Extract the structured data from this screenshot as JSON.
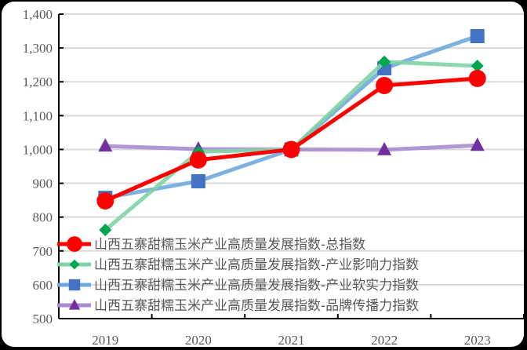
{
  "chart_data": {
    "type": "line",
    "title": "",
    "xlabel": "",
    "ylabel": "",
    "categories": [
      "2019",
      "2020",
      "2021",
      "2022",
      "2023"
    ],
    "ylim": [
      500,
      1400
    ],
    "yticks": [
      "1,400",
      "1,300",
      "1,200",
      "1,100",
      "1,000",
      "900",
      "800",
      "700",
      "600",
      "500"
    ],
    "grid": true,
    "legend_position": "inside-bottom-left",
    "series": [
      {
        "name": "山西五寨甜糯玉米产业高质量发展指数-总指数",
        "color": "#FF0000",
        "marker": "circle",
        "values": [
          848,
          969,
          1000,
          1189,
          1210
        ]
      },
      {
        "name": "山西五寨甜糯玉米产业高质量发展指数-产业影响力指数",
        "color": "#7FD3A5",
        "marker_color": "#00A550",
        "marker": "diamond",
        "values": [
          762,
          993,
          1000,
          1259,
          1247
        ]
      },
      {
        "name": "山西五寨甜糯玉米产业高质量发展指数-产业软实力指数",
        "color": "#6FA8DC",
        "marker_color": "#4472C4",
        "marker": "square",
        "values": [
          857,
          906,
          1000,
          1240,
          1335
        ]
      },
      {
        "name": "山西五寨甜糯玉米产业高质量发展指数-品牌传播力指数",
        "color": "#A98CCF",
        "marker_color": "#7030A0",
        "marker": "triangle",
        "values": [
          1010,
          1001,
          1000,
          999,
          1012
        ]
      }
    ]
  }
}
